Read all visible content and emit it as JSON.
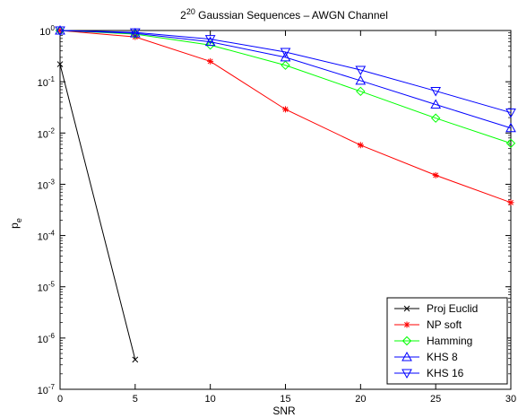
{
  "chart_data": {
    "type": "line",
    "title_base": "2",
    "title_exponent": "20",
    "title_rest": " Gaussian Sequences – AWGN Channel",
    "xlabel": "SNR",
    "ylabel_main": "p",
    "ylabel_sub": "e",
    "xlim": [
      0,
      30
    ],
    "ylim": [
      1e-07,
      1
    ],
    "yscale": "log",
    "x_ticks": [
      0,
      5,
      10,
      15,
      20,
      25,
      30
    ],
    "y_tick_exponents": [
      0,
      -1,
      -2,
      -3,
      -4,
      -5,
      -6,
      -7
    ],
    "y_tick_base": "10",
    "grid": false,
    "legend_position": "bottom-right",
    "series": [
      {
        "name": "Proj Euclid",
        "color": "#000000",
        "marker": "x",
        "x": [
          0,
          5
        ],
        "y": [
          0.22,
          3.8e-07
        ]
      },
      {
        "name": "NP soft",
        "color": "#ff0000",
        "marker": "asterisk",
        "x": [
          0,
          5,
          10,
          15,
          20,
          25,
          30
        ],
        "y": [
          1.0,
          0.75,
          0.25,
          0.029,
          0.0058,
          0.0015,
          0.00044
        ]
      },
      {
        "name": "Hamming",
        "color": "#00ff00",
        "marker": "diamond",
        "x": [
          0,
          5,
          10,
          15,
          20,
          25,
          30
        ],
        "y": [
          1.0,
          0.85,
          0.52,
          0.21,
          0.065,
          0.0195,
          0.0063
        ]
      },
      {
        "name": "KHS 8",
        "color": "#0000ff",
        "marker": "triangle-up",
        "x": [
          0,
          5,
          10,
          15,
          20,
          25,
          30
        ],
        "y": [
          1.0,
          0.88,
          0.6,
          0.3,
          0.105,
          0.036,
          0.0125
        ]
      },
      {
        "name": "KHS 16",
        "color": "#0000ff",
        "marker": "triangle-down",
        "x": [
          0,
          5,
          10,
          15,
          20,
          25,
          30
        ],
        "y": [
          1.0,
          0.92,
          0.68,
          0.38,
          0.17,
          0.066,
          0.025
        ]
      }
    ]
  }
}
